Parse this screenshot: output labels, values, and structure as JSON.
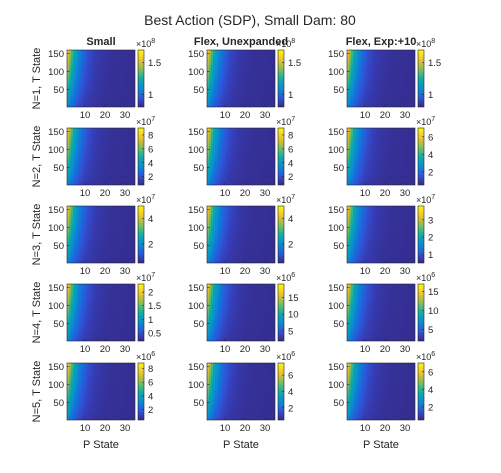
{
  "chart_data": {
    "type": "heatmap",
    "title": "Best Action (SDP), Small Dam: 80",
    "column_titles": [
      "Small",
      "Flex, Unexpanded",
      "Flex, Exp:+10"
    ],
    "row_labels": [
      "N=1, T State",
      "N=2, T State",
      "N=3, T State",
      "N=4, T State",
      "N=5, T State"
    ],
    "xlabel": "P State",
    "x_ticks": [
      "10",
      "20",
      "30"
    ],
    "xlim": [
      1,
      35
    ],
    "y_ticks": [
      "50",
      "100",
      "150"
    ],
    "ylim": [
      1,
      160
    ],
    "colormap": "parula",
    "panels": [
      [
        {
          "multiplier": "×10^8",
          "cbar_ticks": [
            "1",
            "1.5"
          ],
          "cbar_ticks_values": [
            1,
            1.5
          ],
          "clim": [
            0.8,
            1.7
          ]
        },
        {
          "multiplier": "×10^8",
          "cbar_ticks": [
            "1",
            "1.5"
          ],
          "cbar_ticks_values": [
            1,
            1.5
          ],
          "clim": [
            0.8,
            1.7
          ]
        },
        {
          "multiplier": "×10^8",
          "cbar_ticks": [
            "1",
            "1.5"
          ],
          "cbar_ticks_values": [
            1,
            1.5
          ],
          "clim": [
            0.8,
            1.7
          ]
        }
      ],
      [
        {
          "multiplier": "×10^7",
          "cbar_ticks": [
            "2",
            "4",
            "6",
            "8"
          ],
          "cbar_ticks_values": [
            2,
            4,
            6,
            8
          ],
          "clim": [
            0.8,
            9
          ]
        },
        {
          "multiplier": "×10^7",
          "cbar_ticks": [
            "2",
            "4",
            "6",
            "8"
          ],
          "cbar_ticks_values": [
            2,
            4,
            6,
            8
          ],
          "clim": [
            0.8,
            9
          ]
        },
        {
          "multiplier": "×10^7",
          "cbar_ticks": [
            "2",
            "4",
            "6"
          ],
          "cbar_ticks_values": [
            2,
            4,
            6
          ],
          "clim": [
            0.5,
            7
          ]
        }
      ],
      [
        {
          "multiplier": "×10^7",
          "cbar_ticks": [
            "2",
            "4"
          ],
          "cbar_ticks_values": [
            2,
            4
          ],
          "clim": [
            0.5,
            5
          ]
        },
        {
          "multiplier": "×10^7",
          "cbar_ticks": [
            "2",
            "4"
          ],
          "cbar_ticks_values": [
            2,
            4
          ],
          "clim": [
            0.5,
            5
          ]
        },
        {
          "multiplier": "×10^7",
          "cbar_ticks": [
            "1",
            "2",
            "3"
          ],
          "cbar_ticks_values": [
            1,
            2,
            3
          ],
          "clim": [
            0.5,
            3.8
          ]
        }
      ],
      [
        {
          "multiplier": "×10^7",
          "cbar_ticks": [
            "0.5",
            "1",
            "1.5",
            "2"
          ],
          "cbar_ticks_values": [
            0.5,
            1,
            1.5,
            2
          ],
          "clim": [
            0.2,
            2.3
          ]
        },
        {
          "multiplier": "×10^6",
          "cbar_ticks": [
            "5",
            "10",
            "15"
          ],
          "cbar_ticks_values": [
            5,
            10,
            15
          ],
          "clim": [
            2,
            19
          ]
        },
        {
          "multiplier": "×10^6",
          "cbar_ticks": [
            "5",
            "10",
            "15"
          ],
          "cbar_ticks_values": [
            5,
            10,
            15
          ],
          "clim": [
            2,
            17
          ]
        }
      ],
      [
        {
          "multiplier": "×10^6",
          "cbar_ticks": [
            "2",
            "4",
            "6",
            "8"
          ],
          "cbar_ticks_values": [
            2,
            4,
            6,
            8
          ],
          "clim": [
            0.5,
            8.8
          ]
        },
        {
          "multiplier": "×10^6",
          "cbar_ticks": [
            "2",
            "4",
            "6"
          ],
          "cbar_ticks_values": [
            2,
            4,
            6
          ],
          "clim": [
            0.5,
            7.5
          ]
        },
        {
          "multiplier": "×10^6",
          "cbar_ticks": [
            "2",
            "4",
            "6"
          ],
          "cbar_ticks_values": [
            2,
            4,
            6
          ],
          "clim": [
            0.5,
            7
          ]
        }
      ]
    ],
    "surface_model": "value is highest at low P State and high T State, falling off quickly as P State increases"
  }
}
